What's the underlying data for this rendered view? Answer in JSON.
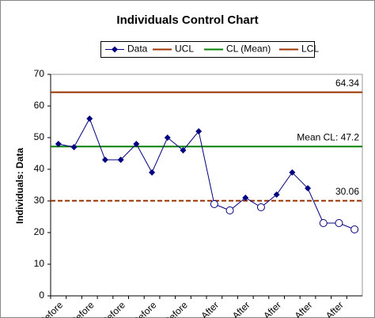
{
  "chart_data": {
    "type": "line",
    "title": "Individuals Control Chart",
    "y_label": "Individuals: Data",
    "categories": [
      "Before",
      null,
      "Before",
      null,
      "Before",
      null,
      "Before",
      null,
      "Before",
      null,
      "After",
      null,
      "After",
      null,
      "After",
      null,
      "After",
      null,
      "After",
      null
    ],
    "series": [
      {
        "name": "Data",
        "color": "#000080",
        "marker": "diamond",
        "values": [
          48,
          47,
          56,
          43,
          43,
          48,
          39,
          50,
          46,
          52,
          29,
          27,
          31,
          28,
          32,
          39,
          34,
          23,
          23,
          21
        ],
        "flagged_points": [
          10,
          11,
          13,
          17,
          18,
          19
        ],
        "flagged_marker": "open-circle"
      }
    ],
    "limits": [
      {
        "name": "UCL",
        "color": "#993300",
        "value": 64.34,
        "dash": false
      },
      {
        "name": "CL (Mean)",
        "color": "#008000",
        "value": 47.2,
        "value_label": "Mean CL: 47.2",
        "dash": false
      },
      {
        "name": "LCL",
        "color": "#993300",
        "value": 30.06,
        "dash": true
      }
    ],
    "ylim": [
      0,
      70
    ],
    "yticks": [
      0,
      10,
      20,
      30,
      40,
      50,
      60,
      70
    ],
    "grid": false,
    "legend": "top"
  }
}
